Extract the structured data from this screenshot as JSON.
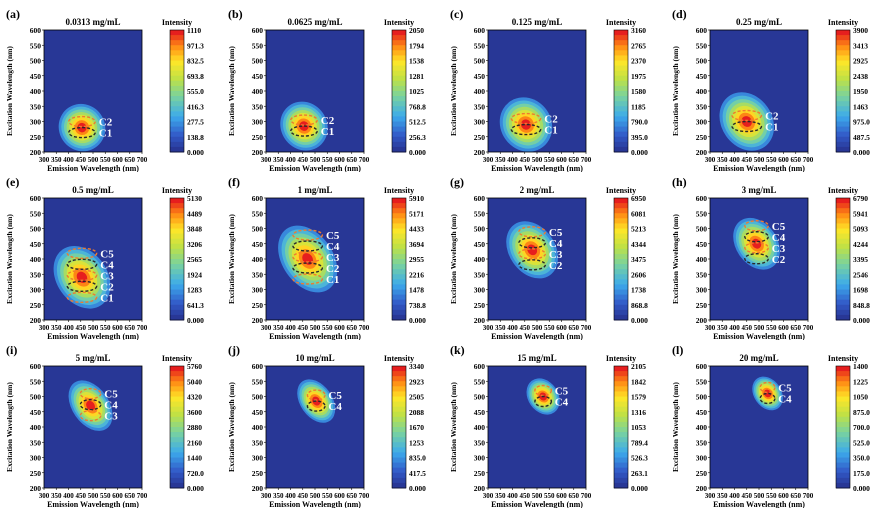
{
  "common": {
    "xlabel": "Emission Wavelength (nm)",
    "ylabel": "Excitation Wavelength (nm)",
    "colorbar_label": "Intensity",
    "x_ticks": [
      "300",
      "350",
      "400",
      "450",
      "500",
      "550",
      "600",
      "650",
      "700"
    ],
    "y_ticks": [
      "600",
      "550",
      "500",
      "450",
      "400",
      "350",
      "300",
      "250",
      "200"
    ]
  },
  "chart_data": [
    {
      "type": "heatmap",
      "panel": "(a)",
      "title": "0.0313 mg/mL",
      "xlim": [
        300,
        700
      ],
      "ylim": [
        200,
        600
      ],
      "colorbar_ticks": [
        "1110",
        "971.3",
        "832.5",
        "693.8",
        "555.0",
        "416.3",
        "277.5",
        "138.8",
        "0.000"
      ],
      "peak": {
        "em": 455,
        "ex": 280,
        "sx": 45,
        "sy": 38
      },
      "components": [
        "C2",
        "C1"
      ]
    },
    {
      "type": "heatmap",
      "panel": "(b)",
      "title": "0.0625 mg/mL",
      "xlim": [
        300,
        700
      ],
      "ylim": [
        200,
        600
      ],
      "colorbar_ticks": [
        "2050",
        "1794",
        "1538",
        "1281",
        "1025",
        "768.8",
        "512.5",
        "256.3",
        "0.000"
      ],
      "peak": {
        "em": 455,
        "ex": 285,
        "sx": 45,
        "sy": 40
      },
      "components": [
        "C2",
        "C1"
      ]
    },
    {
      "type": "heatmap",
      "panel": "(c)",
      "title": "0.125 mg/mL",
      "xlim": [
        300,
        700
      ],
      "ylim": [
        200,
        600
      ],
      "colorbar_ticks": [
        "3160",
        "2765",
        "2370",
        "1975",
        "1580",
        "1185",
        "790.0",
        "395.0",
        "0.000"
      ],
      "peak": {
        "em": 455,
        "ex": 290,
        "sx": 50,
        "sy": 45
      },
      "components": [
        "C2",
        "C1"
      ]
    },
    {
      "type": "heatmap",
      "panel": "(d)",
      "title": "0.25 mg/mL",
      "xlim": [
        300,
        700
      ],
      "ylim": [
        200,
        600
      ],
      "colorbar_ticks": [
        "3900",
        "3413",
        "2925",
        "2438",
        "1950",
        "1463",
        "975.0",
        "487.5",
        "0.000"
      ],
      "peak": {
        "em": 450,
        "ex": 300,
        "sx": 50,
        "sy": 50
      },
      "components": [
        "C2",
        "C1"
      ]
    },
    {
      "type": "heatmap",
      "panel": "(e)",
      "title": "0.5 mg/mL",
      "xlim": [
        300,
        700
      ],
      "ylim": [
        200,
        600
      ],
      "colorbar_ticks": [
        "5130",
        "4489",
        "3848",
        "3206",
        "2565",
        "1924",
        "1283",
        "641.3",
        "0.000"
      ],
      "peak": {
        "em": 455,
        "ex": 340,
        "sx": 50,
        "sy": 55
      },
      "components": [
        "C5",
        "C4",
        "C3",
        "C2",
        "C1"
      ]
    },
    {
      "type": "heatmap",
      "panel": "(f)",
      "title": "1 mg/mL",
      "xlim": [
        300,
        700
      ],
      "ylim": [
        200,
        600
      ],
      "colorbar_ticks": [
        "5910",
        "5171",
        "4433",
        "3694",
        "2955",
        "2216",
        "1478",
        "738.8",
        "0.000"
      ],
      "peak": {
        "em": 470,
        "ex": 400,
        "sx": 50,
        "sy": 60
      },
      "components": [
        "C5",
        "C4",
        "C3",
        "C2",
        "C1"
      ]
    },
    {
      "type": "heatmap",
      "panel": "(g)",
      "title": "2 mg/mL",
      "xlim": [
        300,
        700
      ],
      "ylim": [
        200,
        600
      ],
      "colorbar_ticks": [
        "6950",
        "6081",
        "5213",
        "4344",
        "3475",
        "2606",
        "1738",
        "868.8",
        "0.000"
      ],
      "peak": {
        "em": 480,
        "ex": 430,
        "sx": 45,
        "sy": 50
      },
      "components": [
        "C5",
        "C4",
        "C3",
        "C2"
      ]
    },
    {
      "type": "heatmap",
      "panel": "(h)",
      "title": "3 mg/mL",
      "xlim": [
        300,
        700
      ],
      "ylim": [
        200,
        600
      ],
      "colorbar_ticks": [
        "6790",
        "5941",
        "5093",
        "4244",
        "3395",
        "2546",
        "1698",
        "848.8",
        "0.000"
      ],
      "peak": {
        "em": 490,
        "ex": 450,
        "sx": 40,
        "sy": 45
      },
      "components": [
        "C5",
        "C4",
        "C3",
        "C2"
      ]
    },
    {
      "type": "heatmap",
      "panel": "(i)",
      "title": "5 mg/mL",
      "xlim": [
        300,
        700
      ],
      "ylim": [
        200,
        600
      ],
      "colorbar_ticks": [
        "5760",
        "5040",
        "4320",
        "3600",
        "2880",
        "2160",
        "1440",
        "720.0",
        "0.000"
      ],
      "peak": {
        "em": 490,
        "ex": 470,
        "sx": 35,
        "sy": 45
      },
      "components": [
        "C5",
        "C4",
        "C3"
      ]
    },
    {
      "type": "heatmap",
      "panel": "(j)",
      "title": "10 mg/mL",
      "xlim": [
        300,
        700
      ],
      "ylim": [
        200,
        600
      ],
      "colorbar_ticks": [
        "3340",
        "2923",
        "2505",
        "2088",
        "1670",
        "1253",
        "835.0",
        "417.5",
        "0.000"
      ],
      "peak": {
        "em": 505,
        "ex": 485,
        "sx": 30,
        "sy": 38
      },
      "components": [
        "C5",
        "C4"
      ]
    },
    {
      "type": "heatmap",
      "panel": "(k)",
      "title": "15 mg/mL",
      "xlim": [
        300,
        700
      ],
      "ylim": [
        200,
        600
      ],
      "colorbar_ticks": [
        "2105",
        "1842",
        "1579",
        "1316",
        "1053",
        "789.4",
        "526.3",
        "263.1",
        "0.000"
      ],
      "peak": {
        "em": 525,
        "ex": 500,
        "sx": 28,
        "sy": 30
      },
      "components": [
        "C5",
        "C4"
      ]
    },
    {
      "type": "heatmap",
      "panel": "(l)",
      "title": "20 mg/mL",
      "xlim": [
        300,
        700
      ],
      "ylim": [
        200,
        600
      ],
      "colorbar_ticks": [
        "1400",
        "1225",
        "1050",
        "875.0",
        "700.0",
        "525.0",
        "350.0",
        "175.0",
        "0.000"
      ],
      "peak": {
        "em": 535,
        "ex": 510,
        "sx": 25,
        "sy": 28
      },
      "components": [
        "C5",
        "C4"
      ]
    }
  ]
}
